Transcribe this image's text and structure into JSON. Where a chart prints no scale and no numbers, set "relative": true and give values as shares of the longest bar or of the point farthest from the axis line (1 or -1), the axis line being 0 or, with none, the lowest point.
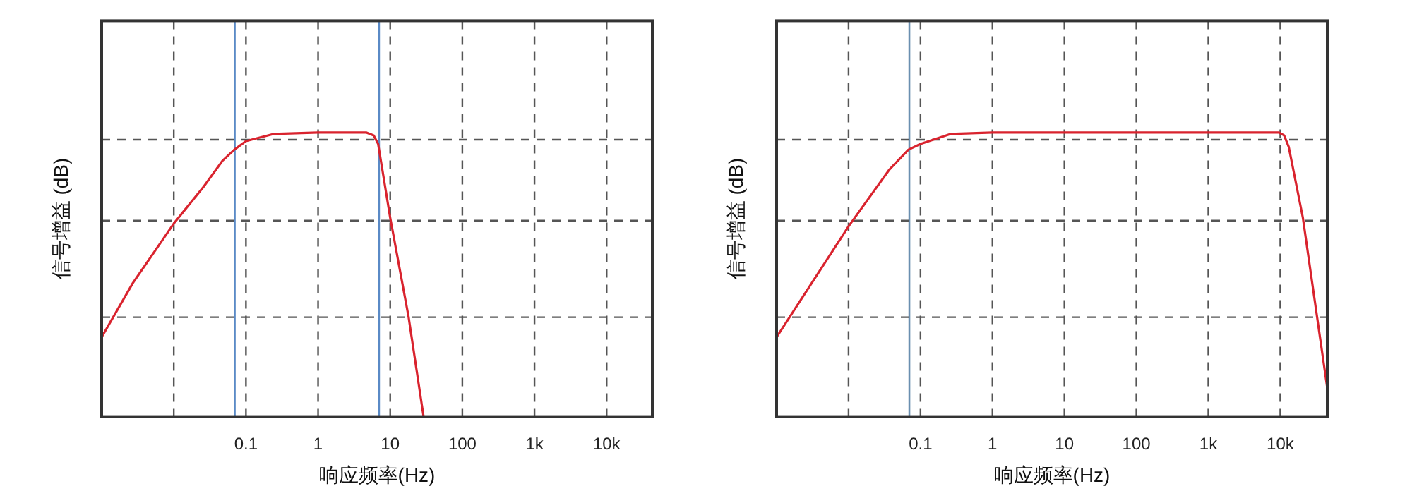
{
  "chart_data": [
    {
      "type": "line",
      "relative": true,
      "xlabel": "响应频率(Hz)",
      "ylabel": "信号增益 (dB)",
      "log": "x",
      "grid": true,
      "xlim": [
        0.001,
        43000
      ],
      "xticks": [
        {
          "value": 0.01,
          "label": null
        },
        0.1,
        1,
        10,
        100,
        {
          "value": 1000,
          "label": "1k"
        },
        {
          "value": 10000,
          "label": "10k"
        }
      ],
      "ref_lines": [
        {
          "axis": "x",
          "value": 0.07,
          "color": "#5a8ac6"
        },
        {
          "axis": "x",
          "value": 7,
          "color": "#5a8ac6"
        },
        {
          "axis": "y",
          "value": 0.35,
          "color": "#555555",
          "line_style": "dashed"
        },
        {
          "axis": "y",
          "value": 0.69,
          "color": "#555555",
          "line_style": "dashed"
        },
        {
          "axis": "y",
          "value": 0.975,
          "color": "#555555",
          "line_style": "dashed"
        }
      ],
      "series": [
        {
          "color": "#d9232e",
          "x": [
            0.001,
            0.0027,
            0.01,
            0.026,
            0.047,
            0.069,
            0.1,
            0.24,
            1,
            4.7,
            5.9,
            6.8,
            10,
            18,
            29
          ],
          "values": [
            0.28,
            0.47,
            0.68,
            0.81,
            0.9,
            0.94,
            0.97,
            0.995,
            1,
            1,
            0.99,
            0.96,
            0.7,
            0.35,
            0
          ]
        }
      ]
    },
    {
      "type": "line",
      "relative": true,
      "xlabel": "响应频率(Hz)",
      "ylabel": "信号增益 (dB)",
      "log": "x",
      "grid": true,
      "xlim": [
        0.001,
        45000
      ],
      "xticks": [
        {
          "value": 0.01,
          "label": null
        },
        0.1,
        1,
        10,
        100,
        {
          "value": 1000,
          "label": "1k"
        },
        {
          "value": 10000,
          "label": "10k"
        }
      ],
      "ref_lines": [
        {
          "axis": "x",
          "value": 0.07,
          "color": "#6a8fb0"
        },
        {
          "axis": "y",
          "value": 0.35,
          "color": "#555555",
          "line_style": "dashed"
        },
        {
          "axis": "y",
          "value": 0.69,
          "color": "#555555",
          "line_style": "dashed"
        },
        {
          "axis": "y",
          "value": 0.975,
          "color": "#555555",
          "line_style": "dashed"
        }
      ],
      "series": [
        {
          "color": "#d9232e",
          "x": [
            0.001,
            0.01,
            0.037,
            0.068,
            0.1,
            0.26,
            1,
            2150,
            9600,
            11300,
            13100,
            20600,
            45000
          ],
          "values": [
            0.28,
            0.67,
            0.87,
            0.94,
            0.96,
            0.995,
            1,
            1,
            1,
            0.99,
            0.95,
            0.7,
            0.1
          ]
        }
      ]
    }
  ]
}
